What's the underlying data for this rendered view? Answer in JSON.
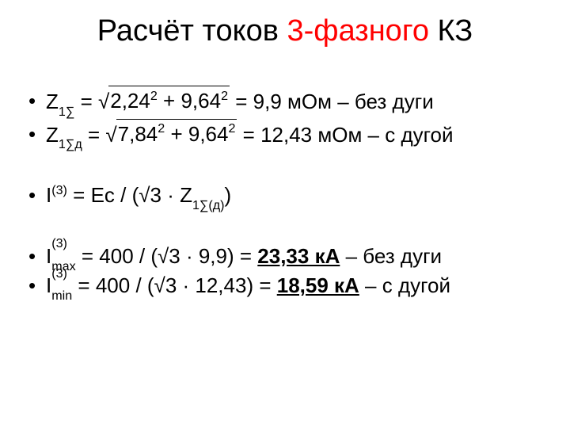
{
  "colors": {
    "accent": "#ff0000",
    "text": "#000000",
    "background": "#ffffff"
  },
  "title": {
    "part1": "Расчёт токов ",
    "accent": "3-фазного",
    "part2": " КЗ"
  },
  "lines": {
    "z1": {
      "sym": "Z",
      "sub": "1∑",
      "eq1": " = √",
      "rad_a": "2,24",
      "p2": "2",
      "plus": " + ",
      "rad_b": "9,64",
      "p2b": "2",
      "eq2": " = 9,9 мОм – без дуги"
    },
    "z1d": {
      "sym": "Z",
      "sub": "1∑д",
      "eq1": " = √",
      "rad_a": "7,84",
      "p2": "2",
      "plus": " + ",
      "rad_b": "9,64",
      "p2b": "2",
      "eq2": " = 12,43 мОм – с дугой"
    },
    "i3": {
      "sym": "I",
      "sup": "(3)",
      "eq1": " = Ec / (√3 · Z",
      "sub": "1∑(д)",
      "close": ")"
    },
    "imax": {
      "sym": "I",
      "sub": "max",
      "sup": "(3)",
      "eq1": " = 400 / (√3 · 9,9) = ",
      "val": "23,33 кА",
      "tail": " – без дуги"
    },
    "imin": {
      "sym": "I",
      "sub": "min",
      "sup": "(3)",
      "eq1": " = 400 / (√3 · 12,43) = ",
      "val": "18,59 кА",
      "tail": " – с дугой"
    }
  }
}
